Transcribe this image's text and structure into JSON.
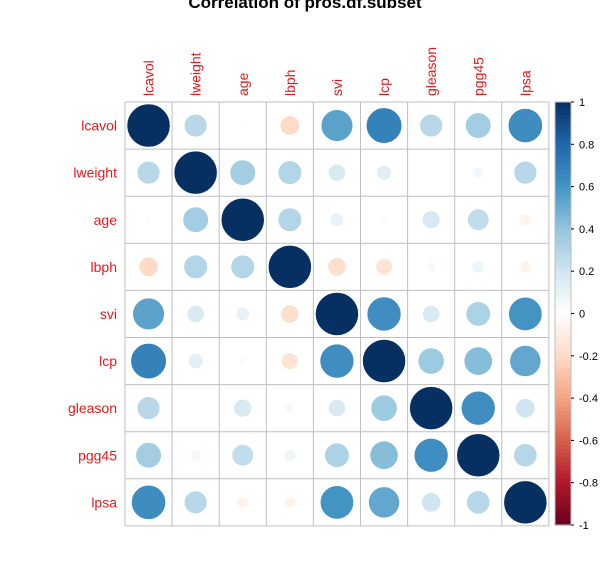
{
  "chart_data": {
    "type": "heatmap",
    "style": "circle",
    "title": "Correlation of pros.df.subset",
    "variables": [
      "lcavol",
      "lweight",
      "age",
      "lbph",
      "svi",
      "lcp",
      "gleason",
      "pgg45",
      "lpsa"
    ],
    "matrix": [
      [
        1.0,
        0.28,
        0.02,
        -0.2,
        0.54,
        0.68,
        0.28,
        0.35,
        0.63
      ],
      [
        0.28,
        1.0,
        0.35,
        0.3,
        0.16,
        0.12,
        0.0,
        0.06,
        0.28
      ],
      [
        0.02,
        0.35,
        1.0,
        0.3,
        0.1,
        0.03,
        0.17,
        0.25,
        -0.07
      ],
      [
        -0.2,
        0.3,
        0.3,
        1.0,
        -0.18,
        -0.15,
        0.05,
        0.08,
        -0.07
      ],
      [
        0.54,
        0.16,
        0.1,
        -0.18,
        1.0,
        0.62,
        0.16,
        0.32,
        0.6
      ],
      [
        0.68,
        0.12,
        0.03,
        -0.15,
        0.62,
        1.0,
        0.37,
        0.43,
        0.52
      ],
      [
        0.28,
        0.0,
        0.17,
        0.05,
        0.16,
        0.37,
        1.0,
        0.62,
        0.2
      ],
      [
        0.35,
        0.06,
        0.25,
        0.08,
        0.32,
        0.43,
        0.62,
        1.0,
        0.29
      ],
      [
        0.63,
        0.28,
        -0.07,
        -0.07,
        0.6,
        0.52,
        0.2,
        0.29,
        1.0
      ]
    ],
    "color_scale": {
      "range": [
        -1,
        1
      ],
      "ticks": [
        "1",
        "0.8",
        "0.6",
        "0.4",
        "0.2",
        "0",
        "-0.2",
        "-0.4",
        "-0.6",
        "-0.8",
        "-1"
      ],
      "stops": [
        "#67001F",
        "#B2182B",
        "#D6604D",
        "#F4A582",
        "#FDDBC7",
        "#FFFFFF",
        "#D1E5F0",
        "#92C5DE",
        "#4393C3",
        "#2166AC",
        "#053061"
      ]
    },
    "label_color": "#E41A1C",
    "grid_color": "#BFBFBF"
  }
}
